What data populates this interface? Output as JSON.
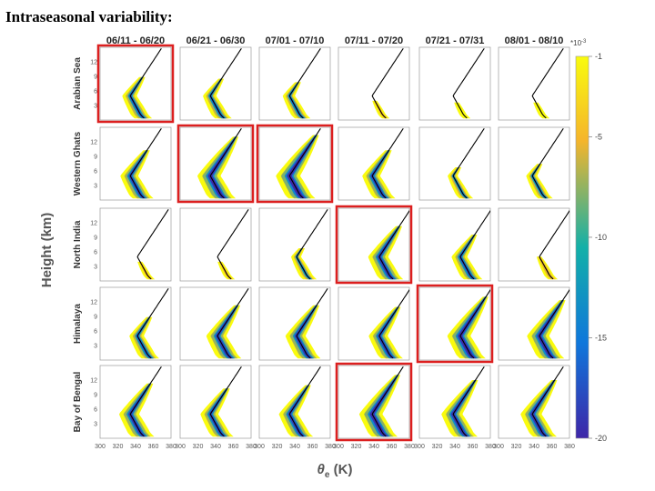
{
  "slide": {
    "title": "Intraseasonal variability:"
  },
  "chart_data": {
    "type": "heatmap",
    "description_columns": "10-day periods",
    "columns": [
      "06/11 - 06/20",
      "06/21 - 06/30",
      "07/01 - 07/10",
      "07/11 - 07/20",
      "07/21 - 07/31",
      "08/01 - 08/10"
    ],
    "rows": [
      "Arabian Sea",
      "Western Ghats",
      "North India",
      "Himalaya",
      "Bay of Bengal"
    ],
    "ylabel": "Height (km)",
    "xlabel_main": "θ",
    "xlabel_sub": "e",
    "xlabel_unit": " (K)",
    "y_ticks": [
      "12",
      "9",
      "6",
      "3"
    ],
    "x_ticks": [
      "300",
      "320",
      "340",
      "360",
      "380"
    ],
    "xlim": [
      300,
      380
    ],
    "ylim": [
      0,
      15
    ],
    "colorbar": {
      "multiplier": "*10",
      "multiplier_exp": "-3",
      "ticks": [
        "-1",
        "-5",
        "-10",
        "-15",
        "-20"
      ],
      "range": [
        -20,
        -1
      ],
      "colors": [
        "#f9fb0e",
        "#f5b52b",
        "#13b0a8",
        "#0f77db",
        "#3e26a8"
      ]
    },
    "intensity": [
      [
        0.55,
        0.5,
        0.45,
        0.05,
        0.03,
        0.03
      ],
      [
        0.7,
        0.95,
        1.0,
        0.7,
        0.35,
        0.4
      ],
      [
        0.05,
        0.05,
        0.35,
        0.8,
        0.6,
        0.15
      ],
      [
        0.55,
        0.8,
        0.8,
        0.75,
        0.95,
        0.9
      ],
      [
        0.8,
        0.7,
        0.75,
        0.95,
        0.85,
        0.85
      ]
    ],
    "highlighted_panels": [
      {
        "row": "Arabian Sea",
        "column": "06/11 - 06/20"
      },
      {
        "row": "Western Ghats",
        "column": "06/21 - 06/30"
      },
      {
        "row": "Western Ghats",
        "column": "07/01 - 07/10"
      },
      {
        "row": "North India",
        "column": "07/11 - 07/20"
      },
      {
        "row": "Himalaya",
        "column": "07/21 - 07/31"
      },
      {
        "row": "Bay of Bengal",
        "column": "07/11 - 07/20"
      }
    ],
    "highlight_color": "#dc1f1f"
  }
}
